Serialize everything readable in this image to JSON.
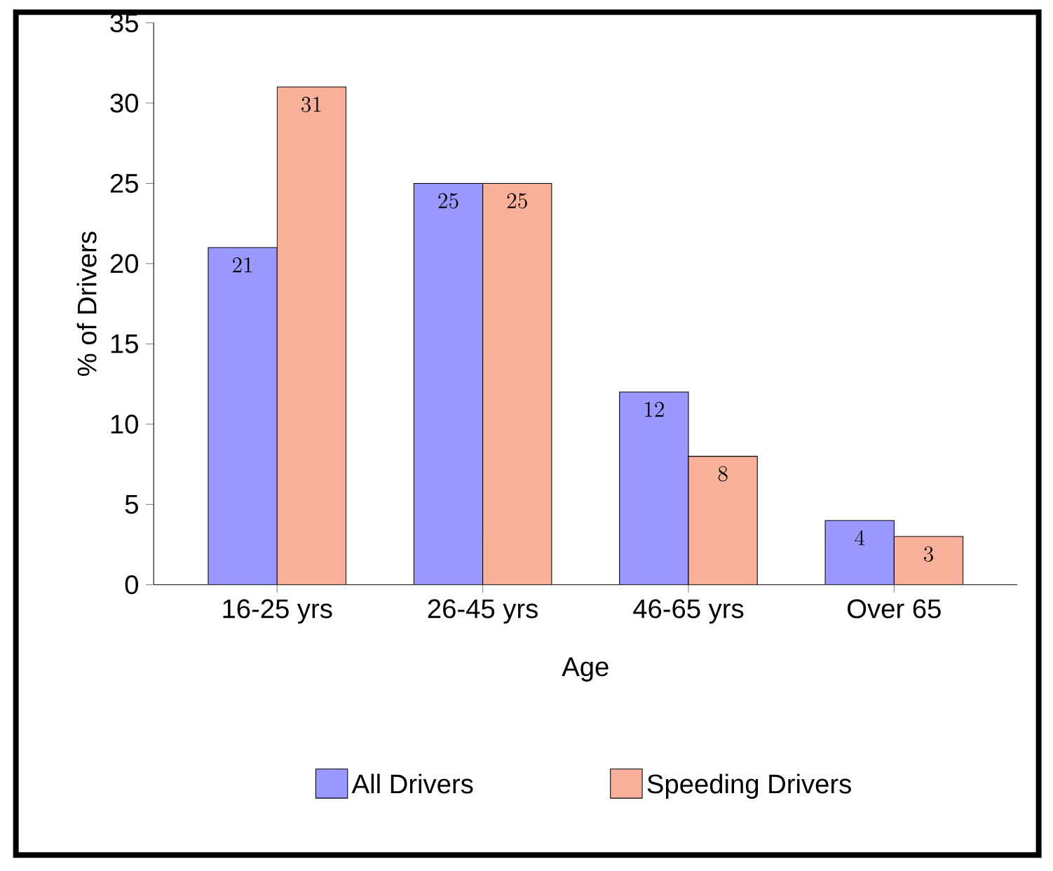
{
  "chart_data": {
    "type": "bar",
    "xlabel": "Age",
    "ylabel": "% of Drivers",
    "categories": [
      "16-25 yrs",
      "26-45 yrs",
      "46-65 yrs",
      "Over 65"
    ],
    "series": [
      {
        "name": "All Drivers",
        "color": "#9999ff",
        "values": [
          21,
          25,
          12,
          4
        ]
      },
      {
        "name": "Speeding Drivers",
        "color": "#f9b09a",
        "values": [
          31,
          25,
          8,
          3
        ]
      }
    ],
    "ylim": [
      0,
      35
    ],
    "yticks": [
      0,
      5,
      10,
      15,
      20,
      25,
      30,
      35
    ],
    "data_labels": true,
    "legend": "bottom",
    "grid": false
  }
}
